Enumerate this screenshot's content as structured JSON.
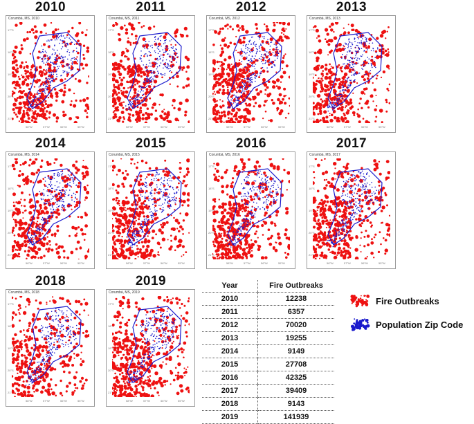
{
  "panels": [
    {
      "year": "2010",
      "subtitle": "Corumbá, MS, 2010"
    },
    {
      "year": "2011",
      "subtitle": "Corumbá, MS, 2011"
    },
    {
      "year": "2012",
      "subtitle": "Corumbá, MS, 2012"
    },
    {
      "year": "2013",
      "subtitle": "Corumbá, MS, 2013"
    },
    {
      "year": "2014",
      "subtitle": "Corumbá, MS, 2014"
    },
    {
      "year": "2015",
      "subtitle": "Corumbá, MS, 2015"
    },
    {
      "year": "2016",
      "subtitle": "Corumbá, MS, 2016"
    },
    {
      "year": "2017",
      "subtitle": "Corumbá, MS, 2017"
    },
    {
      "year": "2018",
      "subtitle": "Corumbá, MS, 2018"
    },
    {
      "year": "2019",
      "subtitle": "Corumbá, MS, 2019"
    }
  ],
  "axis_ticks": {
    "x": [
      "58°W",
      "57°W",
      "56°W",
      "55°W"
    ],
    "y": [
      "17°S",
      "18°S",
      "19°S",
      "20°S",
      "21°S"
    ]
  },
  "table": {
    "headers": [
      "Year",
      "Fire Outbreaks"
    ],
    "rows": [
      [
        "2010",
        "12238"
      ],
      [
        "2011",
        "6357"
      ],
      [
        "2012",
        "70020"
      ],
      [
        "2013",
        "19255"
      ],
      [
        "2014",
        "9149"
      ],
      [
        "2015",
        "27708"
      ],
      [
        "2016",
        "42325"
      ],
      [
        "2017",
        "39409"
      ],
      [
        "2018",
        "9143"
      ],
      [
        "2019",
        "141939"
      ]
    ]
  },
  "legend": [
    {
      "label": "Fire Outbreaks",
      "color": "#ee1111"
    },
    {
      "label": "Population Zip Code",
      "color": "#1a1acc"
    }
  ],
  "colors": {
    "fire": "#ee1111",
    "population": "#1a1acc"
  }
}
